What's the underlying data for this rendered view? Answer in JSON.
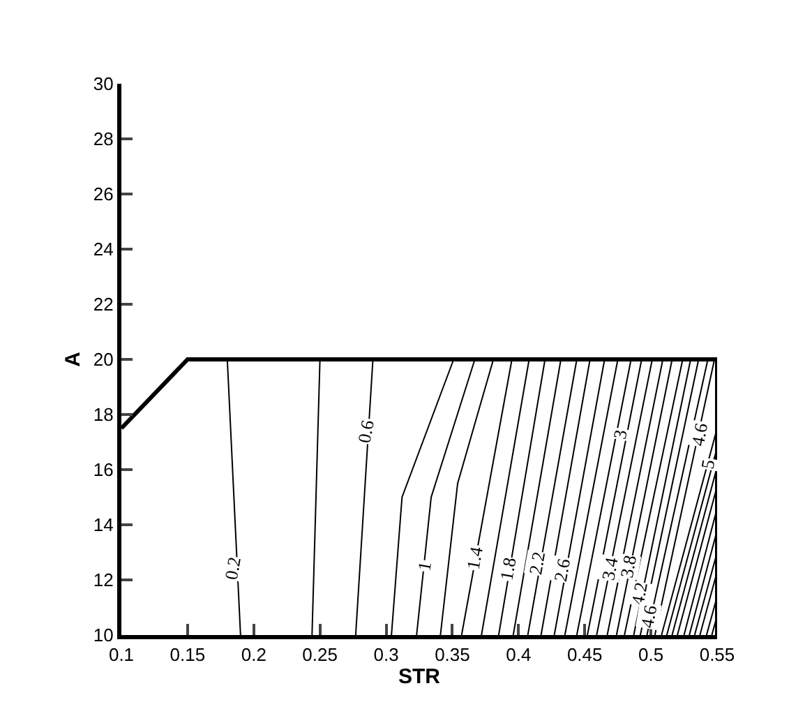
{
  "chart_data": {
    "type": "line",
    "xlabel": "STR",
    "ylabel": "A",
    "xlim": [
      0.1,
      0.55
    ],
    "xticks": [
      0.1,
      0.15,
      0.2,
      0.25,
      0.3,
      0.35,
      0.4,
      0.45,
      0.5,
      0.55
    ],
    "ylim": [
      10,
      30
    ],
    "yticks": [
      10,
      12,
      14,
      16,
      18,
      20,
      22,
      24,
      26,
      28,
      30
    ],
    "grid": false,
    "marker": "none",
    "line_style": "solid",
    "series": [
      {
        "color": "#000000",
        "x": [
          0.1,
          0.15,
          0.55,
          0.55
        ],
        "values": [
          17.5,
          20,
          20,
          10
        ]
      },
      {
        "color": "#000000",
        "x": [
          0.19,
          0.18
        ],
        "values": [
          10,
          20
        ]
      },
      {
        "color": "#000000",
        "x": [
          0.244,
          0.25
        ],
        "values": [
          10,
          20
        ]
      },
      {
        "color": "#000000",
        "x": [
          0.277,
          0.29
        ],
        "values": [
          10,
          20
        ]
      },
      {
        "color": "#000000",
        "x": [
          0.304,
          0.312,
          0.351
        ],
        "values": [
          10,
          15,
          20
        ]
      },
      {
        "color": "#000000",
        "x": [
          0.323,
          0.334,
          0.367
        ],
        "values": [
          10,
          15,
          20
        ]
      },
      {
        "color": "#000000",
        "x": [
          0.341,
          0.354,
          0.381
        ],
        "values": [
          10,
          15.5,
          20
        ]
      },
      {
        "color": "#000000",
        "x": [
          0.357,
          0.395
        ],
        "values": [
          10,
          20
        ]
      },
      {
        "color": "#000000",
        "x": [
          0.372,
          0.408
        ],
        "values": [
          10,
          20
        ]
      },
      {
        "color": "#000000",
        "x": [
          0.385,
          0.42
        ],
        "values": [
          10,
          20
        ]
      },
      {
        "color": "#000000",
        "x": [
          0.396,
          0.432
        ],
        "values": [
          10,
          20
        ]
      },
      {
        "color": "#000000",
        "x": [
          0.407,
          0.444
        ],
        "values": [
          10,
          20
        ]
      },
      {
        "color": "#000000",
        "x": [
          0.417,
          0.454
        ],
        "values": [
          10,
          20
        ]
      },
      {
        "color": "#000000",
        "x": [
          0.427,
          0.465
        ],
        "values": [
          10,
          20
        ]
      },
      {
        "color": "#000000",
        "x": [
          0.435,
          0.475
        ],
        "values": [
          10,
          20
        ]
      },
      {
        "color": "#000000",
        "x": [
          0.444,
          0.485
        ],
        "values": [
          10,
          20
        ]
      },
      {
        "color": "#000000",
        "x": [
          0.452,
          0.493
        ],
        "values": [
          10,
          20
        ]
      },
      {
        "color": "#000000",
        "x": [
          0.459,
          0.501
        ],
        "values": [
          10,
          20
        ]
      },
      {
        "color": "#000000",
        "x": [
          0.467,
          0.509
        ],
        "values": [
          10,
          20
        ]
      },
      {
        "color": "#000000",
        "x": [
          0.474,
          0.516
        ],
        "values": [
          10,
          20
        ]
      },
      {
        "color": "#000000",
        "x": [
          0.48,
          0.524
        ],
        "values": [
          10,
          20
        ]
      },
      {
        "color": "#000000",
        "x": [
          0.487,
          0.53
        ],
        "values": [
          10,
          20
        ]
      },
      {
        "color": "#000000",
        "x": [
          0.492,
          0.536
        ],
        "values": [
          10,
          20
        ]
      },
      {
        "color": "#000000",
        "x": [
          0.497,
          0.543
        ],
        "values": [
          10,
          20
        ]
      },
      {
        "color": "#000000",
        "x": [
          0.503,
          0.548
        ],
        "values": [
          10,
          20
        ]
      },
      {
        "color": "#000000",
        "x": [
          0.508,
          0.55
        ],
        "values": [
          10,
          17.5
        ]
      },
      {
        "color": "#000000",
        "x": [
          0.512,
          0.55
        ],
        "values": [
          10,
          16.8
        ]
      },
      {
        "color": "#000000",
        "x": [
          0.516,
          0.55
        ],
        "values": [
          10,
          16.1
        ]
      },
      {
        "color": "#000000",
        "x": [
          0.52,
          0.55
        ],
        "values": [
          10,
          15.4
        ]
      },
      {
        "color": "#000000",
        "x": [
          0.525,
          0.55
        ],
        "values": [
          10,
          14.6
        ]
      },
      {
        "color": "#000000",
        "x": [
          0.529,
          0.55
        ],
        "values": [
          10,
          13.8
        ]
      },
      {
        "color": "#000000",
        "x": [
          0.533,
          0.55
        ],
        "values": [
          10,
          13
        ]
      },
      {
        "color": "#000000",
        "x": [
          0.537,
          0.55
        ],
        "values": [
          10,
          12.3
        ]
      },
      {
        "color": "#000000",
        "x": [
          0.542,
          0.55
        ],
        "values": [
          10,
          11.4
        ]
      },
      {
        "color": "#000000",
        "x": [
          0.546,
          0.55
        ],
        "values": [
          10,
          10.7
        ]
      }
    ],
    "annotations": [
      {
        "text": "0.2",
        "x": 0.184,
        "y": 12.4
      },
      {
        "text": "0.6",
        "x": 0.285,
        "y": 17.4
      },
      {
        "text": "1",
        "x": 0.329,
        "y": 12.5
      },
      {
        "text": "1.4",
        "x": 0.367,
        "y": 12.8
      },
      {
        "text": "1.8",
        "x": 0.392,
        "y": 12.4
      },
      {
        "text": "2.2",
        "x": 0.414,
        "y": 12.6
      },
      {
        "text": "2.6",
        "x": 0.433,
        "y": 12.4
      },
      {
        "text": "3",
        "x": 0.477,
        "y": 17.3
      },
      {
        "text": "3.4",
        "x": 0.469,
        "y": 12.4
      },
      {
        "text": "3.8",
        "x": 0.483,
        "y": 12.5
      },
      {
        "text": "4.2",
        "x": 0.491,
        "y": 11.5
      },
      {
        "text": "4.6",
        "x": 0.498,
        "y": 10.7
      },
      {
        "text": "4.6",
        "x": 0.537,
        "y": 17.3
      },
      {
        "text": "5",
        "x": 0.543,
        "y": 16.2
      }
    ]
  }
}
